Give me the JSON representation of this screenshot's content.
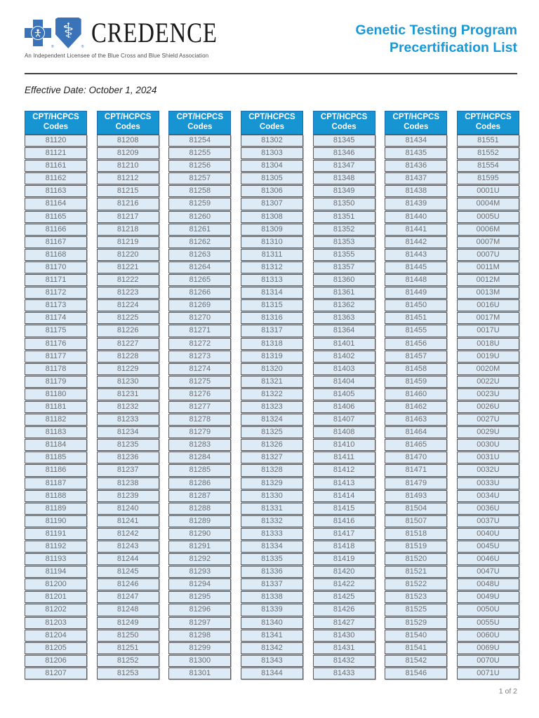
{
  "header": {
    "brand": "CREDENCE",
    "tagline": "An Independent Licensee of the Blue Cross and Blue Shield Association",
    "title_line1": "Genetic Testing Program",
    "title_line2": "Precertification List",
    "effective_date": "Effective Date: October 1, 2024"
  },
  "table": {
    "header_line1": "CPT/HCPCS",
    "header_line2": "Codes",
    "columns": [
      [
        "81120",
        "81121",
        "81161",
        "81162",
        "81163",
        "81164",
        "81165",
        "81166",
        "81167",
        "81168",
        "81170",
        "81171",
        "81172",
        "81173",
        "81174",
        "81175",
        "81176",
        "81177",
        "81178",
        "81179",
        "81180",
        "81181",
        "81182",
        "81183",
        "81184",
        "81185",
        "81186",
        "81187",
        "81188",
        "81189",
        "81190",
        "81191",
        "81192",
        "81193",
        "81194",
        "81200",
        "81201",
        "81202",
        "81203",
        "81204",
        "81205",
        "81206",
        "81207"
      ],
      [
        "81208",
        "81209",
        "81210",
        "81212",
        "81215",
        "81216",
        "81217",
        "81218",
        "81219",
        "81220",
        "81221",
        "81222",
        "81223",
        "81224",
        "81225",
        "81226",
        "81227",
        "81228",
        "81229",
        "81230",
        "81231",
        "81232",
        "81233",
        "81234",
        "81235",
        "81236",
        "81237",
        "81238",
        "81239",
        "81240",
        "81241",
        "81242",
        "81243",
        "81244",
        "81245",
        "81246",
        "81247",
        "81248",
        "81249",
        "81250",
        "81251",
        "81252",
        "81253"
      ],
      [
        "81254",
        "81255",
        "81256",
        "81257",
        "81258",
        "81259",
        "81260",
        "81261",
        "81262",
        "81263",
        "81264",
        "81265",
        "81266",
        "81269",
        "81270",
        "81271",
        "81272",
        "81273",
        "81274",
        "81275",
        "81276",
        "81277",
        "81278",
        "81279",
        "81283",
        "81284",
        "81285",
        "81286",
        "81287",
        "81288",
        "81289",
        "81290",
        "81291",
        "81292",
        "81293",
        "81294",
        "81295",
        "81296",
        "81297",
        "81298",
        "81299",
        "81300",
        "81301"
      ],
      [
        "81302",
        "81303",
        "81304",
        "81305",
        "81306",
        "81307",
        "81308",
        "81309",
        "81310",
        "81311",
        "81312",
        "81313",
        "81314",
        "81315",
        "81316",
        "81317",
        "81318",
        "81319",
        "81320",
        "81321",
        "81322",
        "81323",
        "81324",
        "81325",
        "81326",
        "81327",
        "81328",
        "81329",
        "81330",
        "81331",
        "81332",
        "81333",
        "81334",
        "81335",
        "81336",
        "81337",
        "81338",
        "81339",
        "81340",
        "81341",
        "81342",
        "81343",
        "81344"
      ],
      [
        "81345",
        "81346",
        "81347",
        "81348",
        "81349",
        "81350",
        "81351",
        "81352",
        "81353",
        "81355",
        "81357",
        "81360",
        "81361",
        "81362",
        "81363",
        "81364",
        "81401",
        "81402",
        "81403",
        "81404",
        "81405",
        "81406",
        "81407",
        "81408",
        "81410",
        "81411",
        "81412",
        "81413",
        "81414",
        "81415",
        "81416",
        "81417",
        "81418",
        "81419",
        "81420",
        "81422",
        "81425",
        "81426",
        "81427",
        "81430",
        "81431",
        "81432",
        "81433"
      ],
      [
        "81434",
        "81435",
        "81436",
        "81437",
        "81438",
        "81439",
        "81440",
        "81441",
        "81442",
        "81443",
        "81445",
        "81448",
        "81449",
        "81450",
        "81451",
        "81455",
        "81456",
        "81457",
        "81458",
        "81459",
        "81460",
        "81462",
        "81463",
        "81464",
        "81465",
        "81470",
        "81471",
        "81479",
        "81493",
        "81504",
        "81507",
        "81518",
        "81519",
        "81520",
        "81521",
        "81522",
        "81523",
        "81525",
        "81529",
        "81540",
        "81541",
        "81542",
        "81546"
      ],
      [
        "81551",
        "81552",
        "81554",
        "81595",
        "0001U",
        "0004M",
        "0005U",
        "0006M",
        "0007M",
        "0007U",
        "0011M",
        "0012M",
        "0013M",
        "0016U",
        "0017M",
        "0017U",
        "0018U",
        "0019U",
        "0020M",
        "0022U",
        "0023U",
        "0026U",
        "0027U",
        "0029U",
        "0030U",
        "0031U",
        "0032U",
        "0033U",
        "0034U",
        "0036U",
        "0037U",
        "0040U",
        "0045U",
        "0046U",
        "0047U",
        "0048U",
        "0049U",
        "0050U",
        "0055U",
        "0060U",
        "0069U",
        "0070U",
        "0071U"
      ]
    ]
  },
  "footer": {
    "page_number": "1 of 2"
  },
  "colors": {
    "title_blue": "#1898d6",
    "table_header_blue": "#1795d3",
    "cell_background": "#dcebf5",
    "cell_border": "#5a5b5e",
    "code_text": "#6d6e71",
    "bcbs_logo_blue": "#3b73b9"
  }
}
